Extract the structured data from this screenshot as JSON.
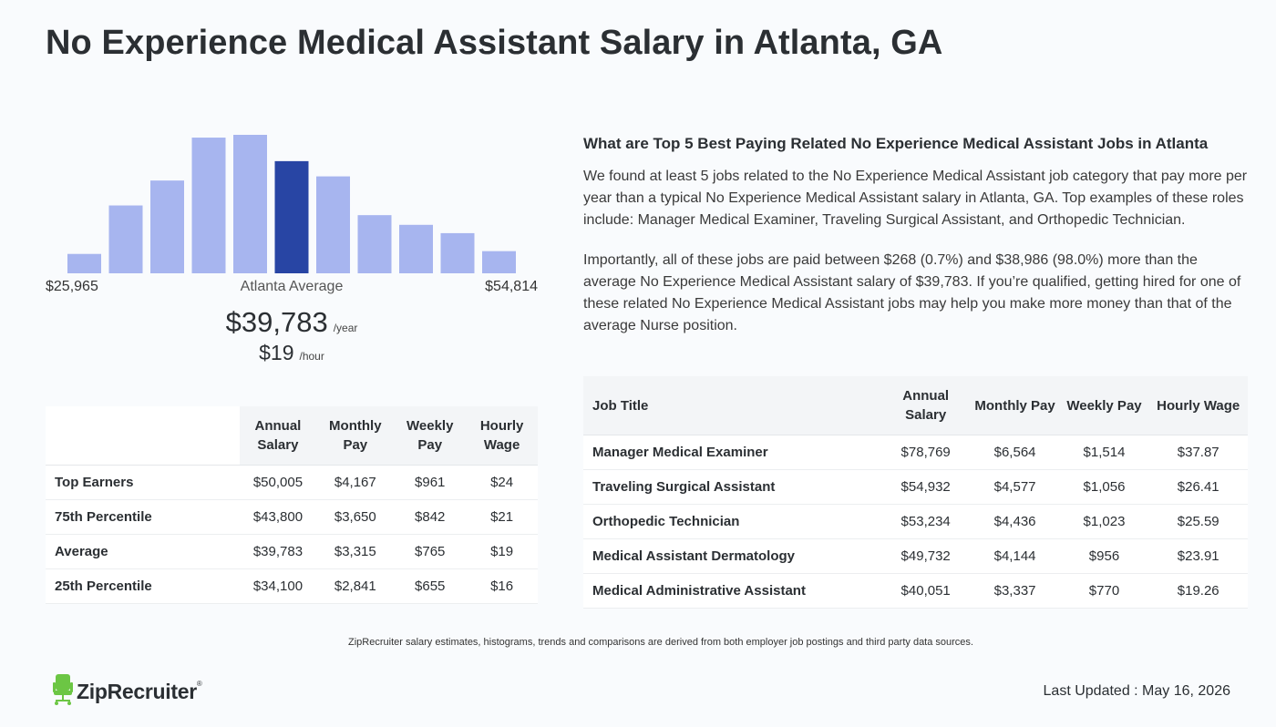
{
  "page": {
    "title": "No Experience Medical Assistant Salary in Atlanta, GA"
  },
  "histogram": {
    "min_label": "$25,965",
    "mid_label": "Atlanta Average",
    "max_label": "$54,814",
    "bar_heights_pct": [
      14,
      49,
      67,
      98,
      100,
      81,
      70,
      42,
      35,
      29,
      16
    ],
    "highlight_index": 5,
    "bar_color": "#a7b5ef",
    "highlight_color": "#2845a4"
  },
  "average": {
    "yearly": "$39,783",
    "yearly_unit": "/year",
    "hourly": "$19",
    "hourly_unit": "/hour"
  },
  "percentile_table": {
    "headers": [
      "Annual Salary",
      "Monthly Pay",
      "Weekly Pay",
      "Hourly Wage"
    ],
    "rows": [
      {
        "label": "Top Earners",
        "values": [
          "$50,005",
          "$4,167",
          "$961",
          "$24"
        ]
      },
      {
        "label": "75th Percentile",
        "values": [
          "$43,800",
          "$3,650",
          "$842",
          "$21"
        ]
      },
      {
        "label": "Average",
        "values": [
          "$39,783",
          "$3,315",
          "$765",
          "$19"
        ]
      },
      {
        "label": "25th Percentile",
        "values": [
          "$34,100",
          "$2,841",
          "$655",
          "$16"
        ]
      }
    ]
  },
  "related": {
    "heading": "What are Top 5 Best Paying Related No Experience Medical Assistant Jobs in Atlanta",
    "para1": "We found at least 5 jobs related to the No Experience Medical Assistant job category that pay more per year than a typical No Experience Medical Assistant salary in Atlanta, GA. Top examples of these roles include: Manager Medical Examiner, Traveling Surgical Assistant, and Orthopedic Technician.",
    "para2": "Importantly, all of these jobs are paid between $268 (0.7%) and $38,986 (98.0%) more than the average No Experience Medical Assistant salary of $39,783. If you’re qualified, getting hired for one of these related No Experience Medical Assistant jobs may help you make more money than that of the average Nurse position."
  },
  "jobs_table": {
    "headers": [
      "Job Title",
      "Annual Salary",
      "Monthly Pay",
      "Weekly Pay",
      "Hourly Wage"
    ],
    "rows": [
      {
        "title": "Manager Medical Examiner",
        "values": [
          "$78,769",
          "$6,564",
          "$1,514",
          "$37.87"
        ]
      },
      {
        "title": "Traveling Surgical Assistant",
        "values": [
          "$54,932",
          "$4,577",
          "$1,056",
          "$26.41"
        ]
      },
      {
        "title": "Orthopedic Technician",
        "values": [
          "$53,234",
          "$4,436",
          "$1,023",
          "$25.59"
        ]
      },
      {
        "title": "Medical Assistant Dermatology",
        "values": [
          "$49,732",
          "$4,144",
          "$956",
          "$23.91"
        ]
      },
      {
        "title": "Medical Administrative Assistant",
        "values": [
          "$40,051",
          "$3,337",
          "$770",
          "$19.26"
        ]
      }
    ]
  },
  "footer": {
    "disclaimer": "ZipRecruiter salary estimates, histograms, trends and comparisons are derived from both employer job postings and third party data sources.",
    "logo_text": "ZipRecruiter",
    "logo_mark": "®",
    "logo_color": "#6cc644",
    "last_updated": "Last Updated : May 16, 2026"
  }
}
